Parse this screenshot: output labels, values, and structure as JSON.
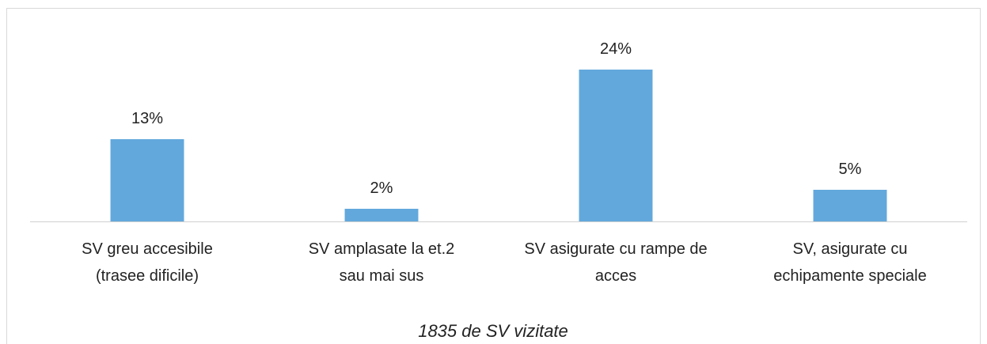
{
  "chart_data": {
    "type": "bar",
    "categories": [
      "SV greu accesibile\n(trasee dificile)",
      "SV amplasate la et.2\nsau mai sus",
      "SV asigurate cu rampe de\nacces",
      "SV, asigurate cu\nechipamente speciale"
    ],
    "values": [
      13,
      2,
      24,
      5
    ],
    "value_labels": [
      "13%",
      "2%",
      "24%",
      "5%"
    ],
    "color": "#62a8dc",
    "x_label": "1835 de SV vizitate",
    "ylim": [
      0,
      25
    ]
  }
}
